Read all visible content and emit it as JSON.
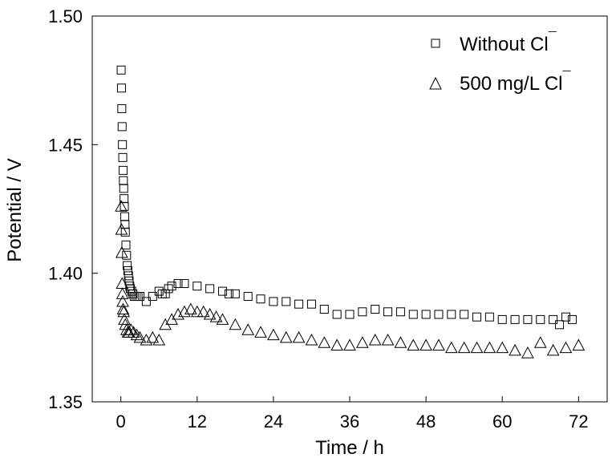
{
  "chart_data": {
    "type": "scatter",
    "xlabel": "Time / h",
    "ylabel": "Potential / V",
    "xlim": [
      -4.5,
      76.5
    ],
    "ylim": [
      1.35,
      1.5
    ],
    "xticks": [
      0,
      12,
      24,
      36,
      48,
      60,
      72
    ],
    "yticks": [
      1.35,
      1.4,
      1.45,
      1.5
    ],
    "xtick_labels": [
      "0",
      "12",
      "24",
      "36",
      "48",
      "60",
      "72"
    ],
    "ytick_labels": [
      "1.35",
      "1.40",
      "1.45",
      "1.50"
    ],
    "grid": false,
    "legend_position": "top-right",
    "series": [
      {
        "name": "Without Cl",
        "name_superscript": "¯",
        "marker": "square",
        "x": [
          0.05,
          0.1,
          0.15,
          0.2,
          0.25,
          0.3,
          0.35,
          0.4,
          0.45,
          0.5,
          0.55,
          0.6,
          0.65,
          0.7,
          0.8,
          0.9,
          1.0,
          1.1,
          1.2,
          1.3,
          1.4,
          1.5,
          1.7,
          1.9,
          2.1,
          2.4,
          2.7,
          3.0,
          4.0,
          5.0,
          6.0,
          6.5,
          7.0,
          7.5,
          8.0,
          9.0,
          10.0,
          12.0,
          14.0,
          16.0,
          17.0,
          18.0,
          20.0,
          22.0,
          24.0,
          26.0,
          28.0,
          30.0,
          32.0,
          34.0,
          36.0,
          38.0,
          40.0,
          42.0,
          44.0,
          46.0,
          48.0,
          50.0,
          52.0,
          54.0,
          56.0,
          58.0,
          60.0,
          62.0,
          64.0,
          66.0,
          68.0,
          69.0,
          70.0,
          71.0
        ],
        "y": [
          1.479,
          1.472,
          1.464,
          1.457,
          1.45,
          1.445,
          1.44,
          1.436,
          1.433,
          1.429,
          1.426,
          1.422,
          1.419,
          1.416,
          1.411,
          1.407,
          1.403,
          1.401,
          1.399,
          1.397,
          1.395,
          1.394,
          1.393,
          1.392,
          1.391,
          1.391,
          1.391,
          1.391,
          1.389,
          1.391,
          1.393,
          1.392,
          1.392,
          1.394,
          1.395,
          1.396,
          1.396,
          1.395,
          1.394,
          1.393,
          1.392,
          1.392,
          1.391,
          1.39,
          1.389,
          1.389,
          1.388,
          1.388,
          1.386,
          1.384,
          1.384,
          1.385,
          1.386,
          1.385,
          1.385,
          1.384,
          1.384,
          1.384,
          1.384,
          1.384,
          1.383,
          1.383,
          1.382,
          1.382,
          1.382,
          1.382,
          1.382,
          1.38,
          1.383,
          1.382
        ]
      },
      {
        "name": "500 mg/L Cl",
        "name_superscript": "¯",
        "marker": "triangle",
        "x": [
          0.05,
          0.1,
          0.15,
          0.2,
          0.25,
          0.3,
          0.35,
          0.45,
          0.55,
          0.7,
          0.9,
          1.1,
          1.3,
          1.6,
          2.0,
          2.5,
          3.0,
          4.0,
          5.0,
          6.0,
          7.0,
          8.0,
          9.0,
          10.0,
          11.0,
          12.0,
          13.0,
          14.0,
          15.0,
          16.0,
          18.0,
          20.0,
          22.0,
          24.0,
          26.0,
          28.0,
          30.0,
          32.0,
          34.0,
          36.0,
          38.0,
          40.0,
          42.0,
          44.0,
          46.0,
          48.0,
          50.0,
          52.0,
          54.0,
          56.0,
          58.0,
          60.0,
          62.0,
          64.0,
          66.0,
          68.0,
          70.0,
          72.0
        ],
        "y": [
          1.426,
          1.417,
          1.408,
          1.396,
          1.392,
          1.389,
          1.386,
          1.385,
          1.382,
          1.38,
          1.378,
          1.377,
          1.377,
          1.378,
          1.377,
          1.376,
          1.375,
          1.374,
          1.375,
          1.374,
          1.38,
          1.382,
          1.384,
          1.385,
          1.386,
          1.385,
          1.385,
          1.384,
          1.383,
          1.382,
          1.38,
          1.378,
          1.377,
          1.376,
          1.375,
          1.375,
          1.374,
          1.373,
          1.372,
          1.372,
          1.373,
          1.374,
          1.374,
          1.373,
          1.372,
          1.372,
          1.372,
          1.371,
          1.371,
          1.371,
          1.371,
          1.371,
          1.37,
          1.369,
          1.373,
          1.37,
          1.371,
          1.372
        ]
      }
    ]
  }
}
